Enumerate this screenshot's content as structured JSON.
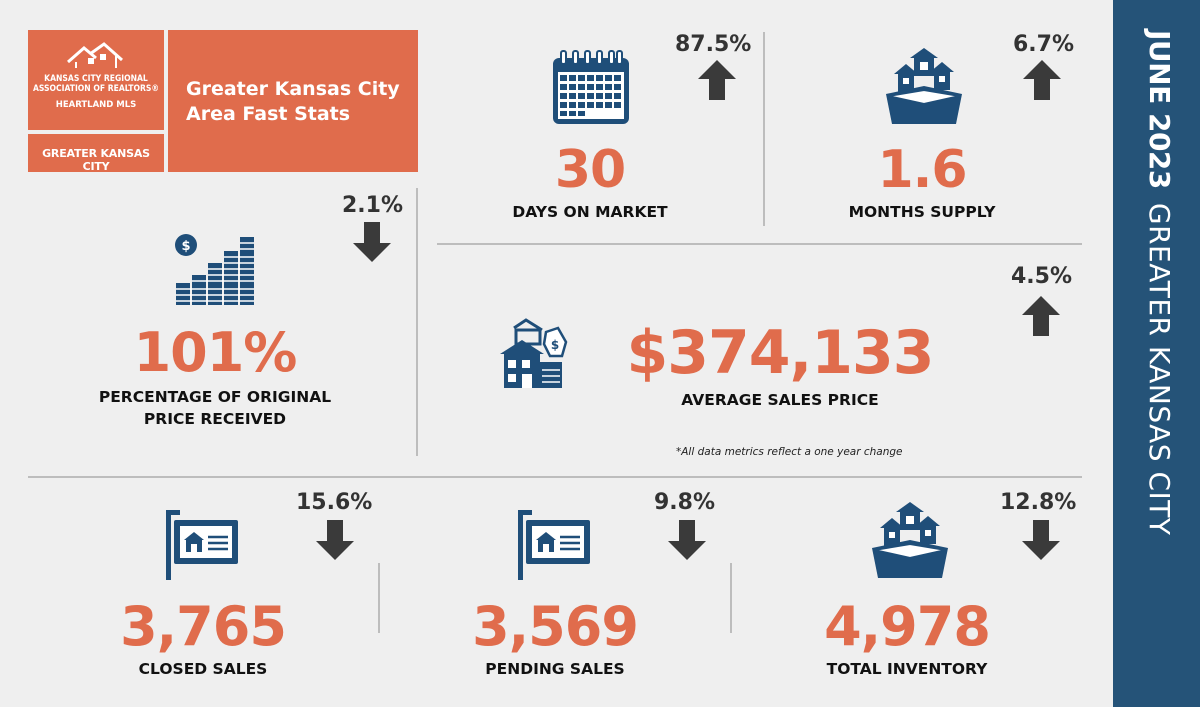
{
  "header": {
    "logo_line1": "KANSAS CITY REGIONAL",
    "logo_line2": "ASSOCIATION OF REALTORS®",
    "logo_line3": "HEARTLAND MLS",
    "logo_sub": "GREATER KANSAS CITY",
    "title_line1": "Greater Kansas City",
    "title_line2": "Area Fast Stats"
  },
  "sidebar": {
    "date": "JUNE 2023",
    "region": "GREATER KANSAS CITY"
  },
  "stats": {
    "days_on_market": {
      "value": "30",
      "label": "DAYS ON MARKET",
      "change": "87.5%",
      "direction": "up",
      "icon": "calendar-icon"
    },
    "months_supply": {
      "value": "1.6",
      "label": "MONTHS SUPPLY",
      "change": "6.7%",
      "direction": "up",
      "icon": "houses-box-icon"
    },
    "pct_original_price": {
      "value": "101%",
      "label_line1": "PERCENTAGE OF ORIGINAL",
      "label_line2": "PRICE RECEIVED",
      "change": "2.1%",
      "direction": "down",
      "icon": "coin-stacks-icon"
    },
    "average_sales_price": {
      "value": "$374,133",
      "label": "AVERAGE SALES PRICE",
      "change": "4.5%",
      "direction": "up",
      "icon": "house-price-tag-icon"
    },
    "closed_sales": {
      "value": "3,765",
      "label": "CLOSED SALES",
      "change": "15.6%",
      "direction": "down",
      "icon": "house-sign-icon"
    },
    "pending_sales": {
      "value": "3,569",
      "label": "PENDING SALES",
      "change": "9.8%",
      "direction": "down",
      "icon": "house-sign-icon"
    },
    "total_inventory": {
      "value": "4,978",
      "label": "TOTAL INVENTORY",
      "change": "12.8%",
      "direction": "down",
      "icon": "houses-box-icon"
    }
  },
  "footnote": "*All data metrics reflect a one year change",
  "colors": {
    "accent": "#e06c4c",
    "navy": "#255378",
    "icon_blue": "#1f4e79",
    "arrow": "#3a3a3a",
    "background": "#efefef"
  }
}
